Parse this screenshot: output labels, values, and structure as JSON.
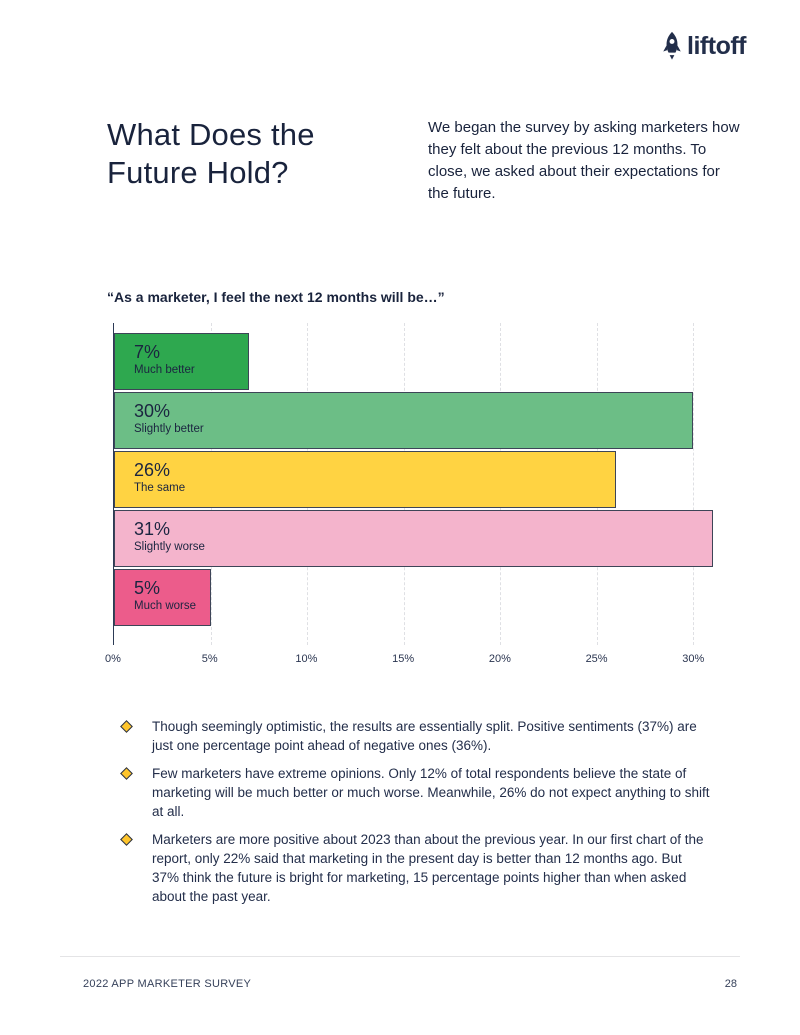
{
  "logo": {
    "text": "liftoff",
    "color": "#222E4A"
  },
  "header": {
    "title_lines": [
      "What Does the",
      "Future Hold?"
    ],
    "intro": "We began the survey by asking marketers how they felt about the previous 12 months. To close, we asked about their expectations for the future."
  },
  "chart_data": {
    "type": "bar",
    "orientation": "horizontal",
    "title": "“As a marketer, I feel the next 12 months will be…”",
    "categories": [
      "Much better",
      "Slightly better",
      "The same",
      "Slightly worse",
      "Much worse"
    ],
    "values": [
      7,
      30,
      26,
      31,
      5
    ],
    "value_labels": [
      "7%",
      "30%",
      "26%",
      "31%",
      "5%"
    ],
    "colors": [
      "#2EA84F",
      "#6CBE86",
      "#FFD342",
      "#F4B4CC",
      "#EC5C8B"
    ],
    "bar_border_color": "#3D4557",
    "x_tick_values": [
      0,
      5,
      10,
      15,
      20,
      25,
      30
    ],
    "x_ticks": [
      "0%",
      "5%",
      "10%",
      "15%",
      "20%",
      "25%",
      "30%"
    ],
    "xlim": [
      0,
      33.5
    ],
    "xlabel": "",
    "ylabel": "",
    "grid": "dashed-vertical"
  },
  "bullets": [
    "Though seemingly optimistic, the results are essentially split. Positive sentiments (37%) are just one percentage point ahead of negative ones (36%).",
    "Few marketers have extreme opinions. Only 12% of total respondents believe the state of marketing will be much better or much worse. Meanwhile, 26% do not expect anything to shift at all.",
    "Marketers are more positive about 2023 than about the previous year. In our first chart of the report, only 22% said that marketing in the present day is better than 12 months ago. But 37% think the future is bright for marketing, 15 percentage points higher than when asked about the past year."
  ],
  "footer": {
    "left": "2022 APP MARKETER SURVEY",
    "page_number": "28"
  }
}
